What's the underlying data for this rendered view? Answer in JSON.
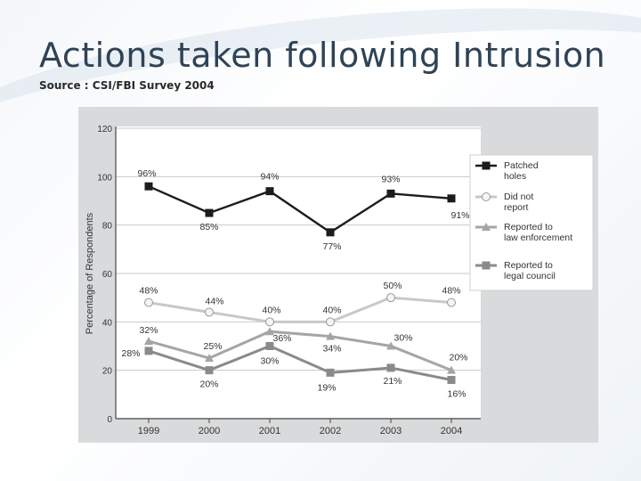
{
  "slide": {
    "title": "Actions taken following Intrusion",
    "source": "Source : CSI/FBI Survey 2004"
  },
  "chart_data": {
    "type": "line",
    "title": "",
    "xlabel": "",
    "ylabel": "Percentage of Respondents",
    "ylim": [
      0,
      120
    ],
    "yticks": [
      "0",
      "20",
      "40",
      "60",
      "80",
      "100",
      "120"
    ],
    "categories": [
      "1999",
      "2000",
      "2001",
      "2002",
      "2003",
      "2004"
    ],
    "series": [
      {
        "name": "Patched holes",
        "legend_lines": [
          "Patched",
          "holes"
        ],
        "marker": "square",
        "color": "#1c1c1c",
        "values": [
          96,
          85,
          94,
          77,
          93,
          91
        ],
        "labels": [
          "96%",
          "85%",
          "94%",
          "77%",
          "93%",
          "91%"
        ]
      },
      {
        "name": "Did not report",
        "legend_lines": [
          "Did not",
          "report"
        ],
        "marker": "circle",
        "color": "#c8c8c8",
        "values": [
          48,
          44,
          40,
          40,
          50,
          48
        ],
        "labels": [
          "48%",
          "44%",
          "40%",
          "40%",
          "50%",
          "48%"
        ]
      },
      {
        "name": "Reported to law enforcement",
        "legend_lines": [
          "Reported to",
          "law enforcement"
        ],
        "marker": "triangle",
        "color": "#a5a5a5",
        "values": [
          32,
          25,
          36,
          34,
          30,
          20
        ],
        "labels": [
          "32%",
          "25%",
          "36%",
          "34%",
          "30%",
          "20%"
        ]
      },
      {
        "name": "Reported to legal council",
        "legend_lines": [
          "Reported to",
          "legal council"
        ],
        "marker": "square",
        "color": "#8a8a8a",
        "values": [
          28,
          20,
          30,
          19,
          21,
          16
        ],
        "labels": [
          "28%",
          "20%",
          "30%",
          "19%",
          "21%",
          "16%"
        ]
      }
    ],
    "grid": true,
    "legend_position": "right"
  },
  "colors": {
    "title": "#2f4356",
    "panel": "#d9dadb",
    "plot_bg": "#ffffff"
  }
}
